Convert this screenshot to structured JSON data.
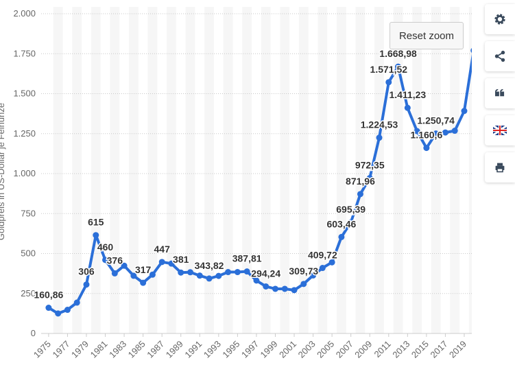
{
  "chart_data": {
    "type": "line",
    "y_axis_label": "Goldpreis in US-Dollar je Feinunze",
    "reset_button": "Reset zoom",
    "color": "#2b6fd8",
    "grid": true,
    "x": [
      1975,
      1976,
      1977,
      1978,
      1979,
      1980,
      1981,
      1982,
      1983,
      1984,
      1985,
      1986,
      1987,
      1988,
      1989,
      1990,
      1991,
      1992,
      1993,
      1994,
      1995,
      1996,
      1997,
      1998,
      1999,
      2000,
      2001,
      2002,
      2003,
      2004,
      2005,
      2006,
      2007,
      2008,
      2009,
      2010,
      2011,
      2012,
      2013,
      2014,
      2015,
      2016,
      2017,
      2018,
      2019,
      2020
    ],
    "values": [
      160.86,
      125,
      148,
      193,
      306,
      615,
      460,
      376,
      424,
      361,
      317,
      368,
      447,
      437,
      381,
      383,
      362,
      343.82,
      360,
      384,
      384,
      387.81,
      331,
      294.24,
      279,
      279,
      271,
      309.73,
      363,
      409.72,
      445,
      603.46,
      695.39,
      871.96,
      972.35,
      1224.53,
      1571.52,
      1668.98,
      1411.23,
      1266,
      1160.6,
      1250.74,
      1257,
      1268,
      1392,
      1770
    ],
    "value_labels": [
      "160,86",
      null,
      null,
      null,
      "306",
      "615",
      "460",
      "376",
      null,
      null,
      "317",
      null,
      "447",
      null,
      "381",
      null,
      null,
      "343,82",
      null,
      null,
      null,
      "387,81",
      null,
      "294,24",
      null,
      null,
      null,
      "309,73",
      null,
      "409,72",
      null,
      "603,46",
      "695,39",
      "871,96",
      "972,35",
      "1.224,53",
      "1.571,52",
      "1.668,98",
      "1.411,23",
      null,
      "1.160,6",
      "1.250,74",
      null,
      null,
      null,
      null
    ],
    "xlim": [
      1974.5,
      2019.8
    ],
    "xticks": [
      1975,
      1977,
      1979,
      1981,
      1983,
      1985,
      1987,
      1989,
      1991,
      1993,
      1995,
      1997,
      1999,
      2001,
      2003,
      2005,
      2007,
      2009,
      2011,
      2013,
      2015,
      2017,
      2019
    ],
    "ylim": [
      0,
      2000
    ],
    "yticks": [
      0,
      250,
      500,
      750,
      {
        "value": 1000,
        "label": "1.000"
      },
      {
        "value": 1250,
        "label": "1.250"
      },
      {
        "value": 1500,
        "label": "1.500"
      },
      {
        "value": 1750,
        "label": "1.750"
      },
      {
        "value": 2000,
        "label": "2.000"
      }
    ]
  }
}
